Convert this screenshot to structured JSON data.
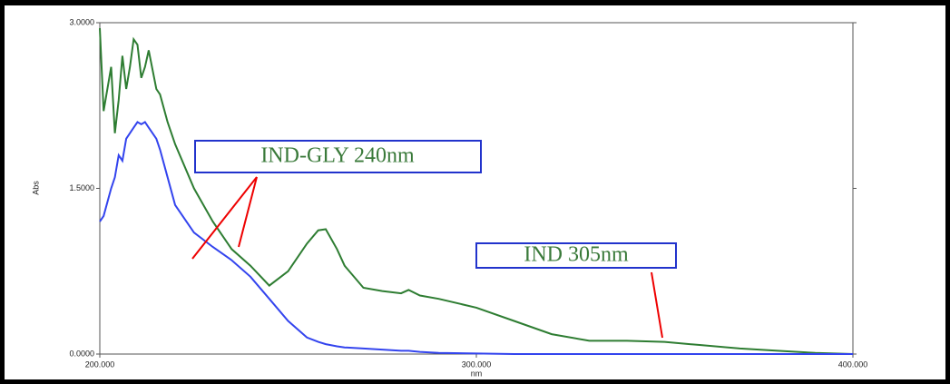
{
  "chart_data": {
    "type": "line",
    "x_label": "nm",
    "y_label": "Abs",
    "x": [
      200,
      201,
      203,
      204,
      205,
      206,
      207,
      208,
      209,
      210,
      211,
      212,
      213,
      215,
      216,
      218,
      220,
      225,
      230,
      235,
      240,
      245,
      250,
      255,
      258,
      260,
      263,
      265,
      270,
      275,
      280,
      282,
      285,
      290,
      300,
      310,
      320,
      330,
      340,
      350,
      360,
      370,
      380,
      390,
      400
    ],
    "series": [
      {
        "name": "IND-GLY",
        "color": "#2e7d32",
        "values": [
          2.95,
          2.2,
          2.6,
          2.0,
          2.3,
          2.7,
          2.4,
          2.6,
          2.85,
          2.8,
          2.5,
          2.6,
          2.75,
          2.4,
          2.35,
          2.1,
          1.9,
          1.5,
          1.2,
          0.95,
          0.8,
          0.62,
          0.75,
          1.0,
          1.12,
          1.13,
          0.95,
          0.8,
          0.6,
          0.57,
          0.55,
          0.58,
          0.53,
          0.5,
          0.42,
          0.3,
          0.18,
          0.12,
          0.12,
          0.11,
          0.08,
          0.05,
          0.03,
          0.01,
          0
        ]
      },
      {
        "name": "IND",
        "color": "#3344ee",
        "values": [
          1.2,
          1.25,
          1.5,
          1.6,
          1.8,
          1.75,
          1.95,
          2.0,
          2.05,
          2.1,
          2.08,
          2.1,
          2.05,
          1.95,
          1.85,
          1.6,
          1.35,
          1.1,
          0.97,
          0.85,
          0.7,
          0.5,
          0.3,
          0.15,
          0.11,
          0.09,
          0.07,
          0.06,
          0.05,
          0.04,
          0.03,
          0.03,
          0.02,
          0.01,
          0.005,
          0,
          0,
          0,
          0,
          0,
          0,
          0,
          0,
          0,
          0
        ]
      }
    ],
    "xlim": [
      200,
      400
    ],
    "xticks": [
      {
        "value": 200,
        "label": "200.000"
      },
      {
        "value": 300,
        "label": "300.000"
      },
      {
        "value": 400,
        "label": "400.000"
      }
    ],
    "ylim": [
      0,
      3
    ],
    "yticks": [
      {
        "value": 0,
        "label": "0.0000"
      },
      {
        "value": 1.5,
        "label": "1.5000"
      },
      {
        "value": 3,
        "label": "3.0000"
      }
    ],
    "annotations": [
      {
        "text": "IND-GLY 240nm"
      },
      {
        "text": "IND 305nm"
      }
    ]
  }
}
